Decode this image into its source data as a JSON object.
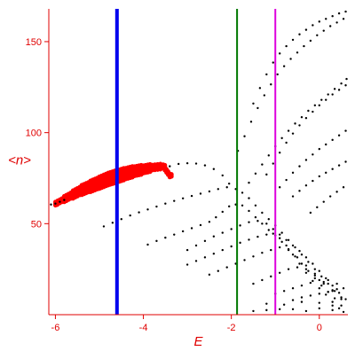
{
  "chart_data": {
    "type": "scatter",
    "title": "",
    "xlabel": "E",
    "ylabel": "<n>",
    "xlim": [
      -6.15,
      0.65
    ],
    "ylim": [
      0,
      168
    ],
    "grid": false,
    "x_ticks": [
      -6,
      -4,
      -2,
      0
    ],
    "x_tick_labels": [
      "-6",
      "-4",
      "-2",
      "0"
    ],
    "y_ticks": [
      50,
      100,
      150
    ],
    "y_tick_labels": [
      "50",
      "100",
      "150"
    ],
    "vertical_lines": [
      {
        "x": -4.6,
        "color": "#0000ee"
      },
      {
        "x": -1.87,
        "color": "#007700"
      },
      {
        "x": -1.0,
        "color": "#dd00dd"
      }
    ],
    "colors": {
      "axis": "#e00000",
      "black_points": "#000000",
      "red_points": "#ff0000"
    },
    "series": [
      {
        "color": "#ff0000",
        "marker": "dense-band",
        "points": [
          [
            -6.0,
            61.0
          ],
          [
            -5.8,
            63.5
          ],
          [
            -5.6,
            66.0
          ],
          [
            -5.4,
            68.5
          ],
          [
            -5.2,
            70.5
          ],
          [
            -5.0,
            72.5
          ],
          [
            -4.8,
            74.5
          ],
          [
            -4.6,
            76.0
          ],
          [
            -4.4,
            77.5
          ],
          [
            -4.2,
            78.8
          ],
          [
            -4.0,
            79.8
          ],
          [
            -3.8,
            80.8
          ],
          [
            -3.55,
            81.5
          ],
          [
            -3.4,
            76.5
          ]
        ]
      },
      {
        "color": "#000000",
        "marker": "dots",
        "points": [
          [
            -6.1,
            60.5
          ],
          [
            -6.0,
            61.0
          ],
          [
            -5.9,
            62.0
          ],
          [
            -5.8,
            63.0
          ],
          [
            -4.9,
            48.5
          ],
          [
            -4.7,
            50.5
          ],
          [
            -4.5,
            52.5
          ],
          [
            -4.3,
            54.5
          ],
          [
            -4.1,
            56.2
          ],
          [
            -3.9,
            57.8
          ],
          [
            -3.7,
            59.4
          ],
          [
            -3.5,
            61.0
          ],
          [
            -3.3,
            62.5
          ],
          [
            -3.1,
            63.9
          ],
          [
            -2.9,
            65.2
          ],
          [
            -2.7,
            66.5
          ],
          [
            -2.5,
            67.7
          ],
          [
            -2.3,
            69.0
          ],
          [
            -2.1,
            70.0
          ],
          [
            -3.4,
            81.5
          ],
          [
            -3.2,
            82.8
          ],
          [
            -3.0,
            83.2
          ],
          [
            -2.8,
            83.0
          ],
          [
            -2.6,
            82.0
          ],
          [
            -2.4,
            80.0
          ],
          [
            -2.2,
            76.5
          ],
          [
            -2.05,
            72.0
          ],
          [
            -1.9,
            69.0
          ],
          [
            -1.75,
            67.0
          ],
          [
            -1.6,
            64.0
          ],
          [
            -1.45,
            60.0
          ],
          [
            -1.3,
            56.0
          ],
          [
            -1.15,
            52.5
          ],
          [
            -1.0,
            49.0
          ],
          [
            -0.85,
            45.0
          ],
          [
            -0.7,
            41.0
          ],
          [
            -0.55,
            37.0
          ],
          [
            -0.4,
            33.0
          ],
          [
            -0.25,
            29.0
          ],
          [
            -0.1,
            25.0
          ],
          [
            0.05,
            21.0
          ],
          [
            0.2,
            17.0
          ],
          [
            0.35,
            13.0
          ],
          [
            -3.9,
            38.5
          ],
          [
            -3.7,
            40.5
          ],
          [
            -3.5,
            42.3
          ],
          [
            -3.3,
            44.0
          ],
          [
            -3.1,
            45.8
          ],
          [
            -2.9,
            47.5
          ],
          [
            -2.7,
            49.2
          ],
          [
            -2.5,
            51.0
          ],
          [
            -2.35,
            53.5
          ],
          [
            -2.2,
            56.5
          ],
          [
            -2.05,
            59.5
          ],
          [
            -1.9,
            60.5
          ],
          [
            -1.75,
            60.0
          ],
          [
            -1.6,
            57.0
          ],
          [
            -1.45,
            53.5
          ],
          [
            -1.3,
            50.0
          ],
          [
            -1.15,
            46.5
          ],
          [
            -1.0,
            43.5
          ],
          [
            -0.85,
            40.0
          ],
          [
            -0.7,
            36.0
          ],
          [
            -0.55,
            32.0
          ],
          [
            -0.4,
            28.0
          ],
          [
            -0.25,
            24.0
          ],
          [
            -0.1,
            20.0
          ],
          [
            0.05,
            16.0
          ],
          [
            0.2,
            12.5
          ],
          [
            0.35,
            9.0
          ],
          [
            0.5,
            5.0
          ],
          [
            -3.0,
            35.5
          ],
          [
            -2.8,
            38.0
          ],
          [
            -2.6,
            40.5
          ],
          [
            -2.4,
            43.0
          ],
          [
            -2.2,
            45.0
          ],
          [
            -2.0,
            47.0
          ],
          [
            -1.8,
            49.0
          ],
          [
            -1.6,
            50.8
          ],
          [
            -1.4,
            51.5
          ],
          [
            -1.2,
            50.0
          ],
          [
            -1.05,
            47.0
          ],
          [
            -0.9,
            44.0
          ],
          [
            -0.75,
            41.0
          ],
          [
            -0.6,
            38.0
          ],
          [
            -0.45,
            35.0
          ],
          [
            -0.3,
            31.5
          ],
          [
            -0.15,
            28.0
          ],
          [
            0.0,
            24.0
          ],
          [
            0.15,
            20.0
          ],
          [
            0.3,
            16.0
          ],
          [
            0.45,
            12.0
          ],
          [
            0.6,
            8.5
          ],
          [
            -3.0,
            27.5
          ],
          [
            -2.8,
            29.5
          ],
          [
            -2.6,
            31.5
          ],
          [
            -2.4,
            33.5
          ],
          [
            -2.2,
            35.5
          ],
          [
            -2.0,
            37.5
          ],
          [
            -1.8,
            39.5
          ],
          [
            -1.6,
            41.2
          ],
          [
            -1.4,
            42.8
          ],
          [
            -1.2,
            44.0
          ],
          [
            -1.05,
            44.5
          ],
          [
            -0.9,
            42.0
          ],
          [
            -0.75,
            38.0
          ],
          [
            -0.6,
            33.0
          ],
          [
            -0.45,
            28.0
          ],
          [
            -0.3,
            23.0
          ],
          [
            -0.15,
            18.5
          ],
          [
            0.0,
            14.5
          ],
          [
            0.15,
            11.0
          ],
          [
            0.3,
            7.0
          ],
          [
            0.45,
            3.5
          ],
          [
            -2.5,
            22.0
          ],
          [
            -2.3,
            24.0
          ],
          [
            -2.1,
            26.0
          ],
          [
            -1.9,
            28.0
          ],
          [
            -1.7,
            30.0
          ],
          [
            -1.5,
            32.0
          ],
          [
            -1.3,
            34.0
          ],
          [
            -1.1,
            35.5
          ],
          [
            -0.9,
            37.0
          ],
          [
            -0.7,
            35.5
          ],
          [
            -0.5,
            31.5
          ],
          [
            -0.3,
            27.0
          ],
          [
            -0.1,
            22.5
          ],
          [
            0.1,
            18.0
          ],
          [
            0.3,
            13.5
          ],
          [
            0.5,
            9.5
          ],
          [
            -1.5,
            17.0
          ],
          [
            -1.3,
            19.0
          ],
          [
            -1.1,
            21.0
          ],
          [
            -0.9,
            23.0
          ],
          [
            -0.7,
            25.0
          ],
          [
            -0.5,
            26.0
          ],
          [
            -0.3,
            25.0
          ],
          [
            -0.1,
            21.5
          ],
          [
            0.1,
            17.0
          ],
          [
            0.3,
            13.0
          ],
          [
            0.5,
            8.5
          ],
          [
            -1.0,
            11.5
          ],
          [
            -0.8,
            13.0
          ],
          [
            -0.6,
            14.5
          ],
          [
            -0.4,
            16.0
          ],
          [
            -0.2,
            17.5
          ],
          [
            0.0,
            19.0
          ],
          [
            0.2,
            19.0
          ],
          [
            0.4,
            17.0
          ],
          [
            0.55,
            14.5
          ],
          [
            -0.6,
            8.0
          ],
          [
            -0.4,
            9.5
          ],
          [
            -0.2,
            10.5
          ],
          [
            0.0,
            11.5
          ],
          [
            0.2,
            12.5
          ],
          [
            0.4,
            14.0
          ],
          [
            -1.5,
            2.0
          ],
          [
            -1.2,
            2.5
          ],
          [
            -0.9,
            3.0
          ],
          [
            -0.6,
            3.0
          ],
          [
            -0.3,
            2.0
          ],
          [
            0.0,
            3.5
          ],
          [
            0.3,
            2.5
          ],
          [
            0.55,
            1.5
          ],
          [
            -1.2,
            6.0
          ],
          [
            -0.8,
            5.5
          ],
          [
            -0.4,
            7.0
          ],
          [
            0.0,
            6.5
          ],
          [
            0.3,
            5.0
          ],
          [
            -1.6,
            72.5
          ],
          [
            -1.45,
            77.5
          ],
          [
            -1.3,
            82.5
          ],
          [
            -1.15,
            87.5
          ],
          [
            -1.0,
            92.5
          ],
          [
            -0.85,
            97.0
          ],
          [
            -0.7,
            101.0
          ],
          [
            -0.55,
            105.0
          ],
          [
            -0.4,
            108.5
          ],
          [
            -0.25,
            112.0
          ],
          [
            -0.1,
            115.0
          ],
          [
            0.05,
            118.0
          ],
          [
            0.2,
            121.0
          ],
          [
            0.35,
            124.0
          ],
          [
            0.5,
            127.0
          ],
          [
            0.62,
            129.5
          ],
          [
            -1.85,
            90.0
          ],
          [
            -1.7,
            98.0
          ],
          [
            -1.55,
            106.0
          ],
          [
            -1.4,
            113.5
          ],
          [
            -1.25,
            120.5
          ],
          [
            -1.1,
            126.5
          ],
          [
            -0.95,
            132.0
          ],
          [
            -0.8,
            136.5
          ],
          [
            -0.65,
            140.5
          ],
          [
            -0.5,
            144.0
          ],
          [
            -0.35,
            147.5
          ],
          [
            -0.2,
            150.5
          ],
          [
            -0.05,
            153.5
          ],
          [
            0.1,
            156.0
          ],
          [
            0.25,
            158.5
          ],
          [
            0.4,
            160.5
          ],
          [
            0.55,
            162.5
          ],
          [
            -1.5,
            116.0
          ],
          [
            -1.35,
            124.5
          ],
          [
            -1.2,
            132.0
          ],
          [
            -1.05,
            138.5
          ],
          [
            -0.9,
            143.5
          ],
          [
            -0.75,
            147.5
          ],
          [
            -0.6,
            151.0
          ],
          [
            -0.45,
            154.0
          ],
          [
            -0.3,
            156.5
          ],
          [
            -0.15,
            159.0
          ],
          [
            0.0,
            161.0
          ],
          [
            0.15,
            162.5
          ],
          [
            0.3,
            164.0
          ],
          [
            0.45,
            165.5
          ],
          [
            0.6,
            166.5
          ],
          [
            -1.2,
            77.0
          ],
          [
            -1.05,
            83.0
          ],
          [
            -0.9,
            89.0
          ],
          [
            -0.75,
            94.5
          ],
          [
            -0.6,
            99.5
          ],
          [
            -0.45,
            104.0
          ],
          [
            -0.3,
            108.0
          ],
          [
            -0.15,
            111.5
          ],
          [
            0.0,
            115.0
          ],
          [
            0.15,
            118.0
          ],
          [
            0.3,
            121.0
          ],
          [
            0.45,
            123.5
          ],
          [
            0.6,
            126.0
          ],
          [
            -0.9,
            70.0
          ],
          [
            -0.75,
            74.0
          ],
          [
            -0.6,
            78.0
          ],
          [
            -0.45,
            81.5
          ],
          [
            -0.3,
            85.0
          ],
          [
            -0.15,
            88.0
          ],
          [
            0.0,
            91.0
          ],
          [
            0.15,
            93.5
          ],
          [
            0.3,
            96.0
          ],
          [
            0.45,
            98.5
          ],
          [
            0.6,
            101.0
          ],
          [
            -0.6,
            65.0
          ],
          [
            -0.45,
            68.0
          ],
          [
            -0.3,
            71.0
          ],
          [
            -0.15,
            73.5
          ],
          [
            0.0,
            76.0
          ],
          [
            0.15,
            78.0
          ],
          [
            0.3,
            80.0
          ],
          [
            0.45,
            82.0
          ],
          [
            0.6,
            84.0
          ],
          [
            -0.2,
            56.0
          ],
          [
            -0.05,
            59.0
          ],
          [
            0.1,
            62.0
          ],
          [
            0.25,
            65.0
          ],
          [
            0.4,
            67.5
          ],
          [
            0.55,
            70.0
          ]
        ]
      }
    ]
  }
}
